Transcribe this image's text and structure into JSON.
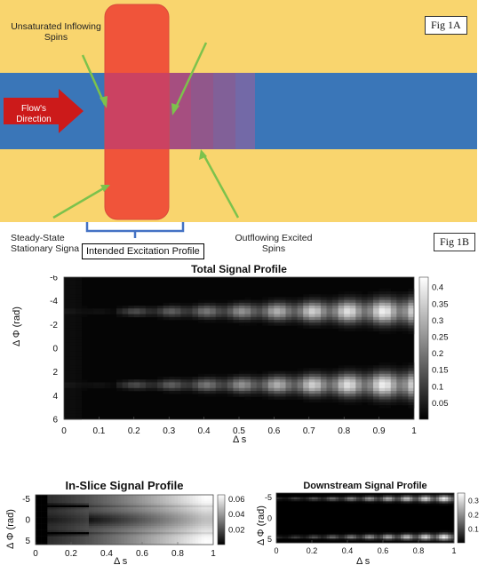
{
  "fig1a": {
    "label": "Fig 1A",
    "texts": {
      "unsaturated": "Unsaturated Inflowing Spins",
      "flow": "Flow's Direction",
      "steady": "Steady-State Stationary Signa",
      "outflowing": "Outflowing Excited Spins",
      "profile": "Intended Excitation Profile"
    },
    "colors": {
      "stationary": "#f9d56e",
      "vessel": "#3a76b8",
      "slice": "#f0543a",
      "arrow": "#cc1a1a",
      "pointer": "#7cc24c"
    }
  },
  "fig1b": {
    "label": "Fig 1B"
  },
  "chart_data": [
    {
      "type": "heatmap",
      "title": "Total Signal Profile",
      "xlabel": "Δ s",
      "ylabel": "Δ Φ (rad)",
      "xlim": [
        0,
        1
      ],
      "ylim": [
        -6,
        6
      ],
      "xticks": [
        "0",
        "0.1",
        "0.2",
        "0.3",
        "0.4",
        "0.5",
        "0.6",
        "0.7",
        "0.8",
        "0.9",
        "1"
      ],
      "yticks": [
        "-6",
        "-4",
        "-2",
        "0",
        "2",
        "4",
        "6"
      ],
      "colorbar": {
        "min": 0,
        "max": 0.43,
        "ticks": [
          "0.4",
          "0.35",
          "0.3",
          "0.25",
          "0.2",
          "0.15",
          "0.1",
          "0.05"
        ]
      }
    },
    {
      "type": "heatmap",
      "title": "In-Slice Signal Profile",
      "xlabel": "Δ s",
      "ylabel": "Δ Φ (rad)",
      "xlim": [
        0,
        1
      ],
      "ylim": [
        -6,
        6
      ],
      "xticks": [
        "0",
        "0.2",
        "0.4",
        "0.6",
        "0.8",
        "1"
      ],
      "yticks": [
        "-5",
        "0",
        "5"
      ],
      "colorbar": {
        "min": 0,
        "max": 0.065,
        "ticks": [
          "0.06",
          "0.04",
          "0.02"
        ]
      }
    },
    {
      "type": "heatmap",
      "title": "Downstream Signal Profile",
      "xlabel": "Δ s",
      "ylabel": "Δ Φ (rad)",
      "xlim": [
        0,
        1
      ],
      "ylim": [
        -6,
        6
      ],
      "xticks": [
        "0",
        "0.2",
        "0.4",
        "0.6",
        "0.8",
        "1"
      ],
      "yticks": [
        "-5",
        "0",
        "5"
      ],
      "colorbar": {
        "min": 0,
        "max": 0.35,
        "ticks": [
          "0.3",
          "0.2",
          "0.1"
        ]
      }
    }
  ]
}
